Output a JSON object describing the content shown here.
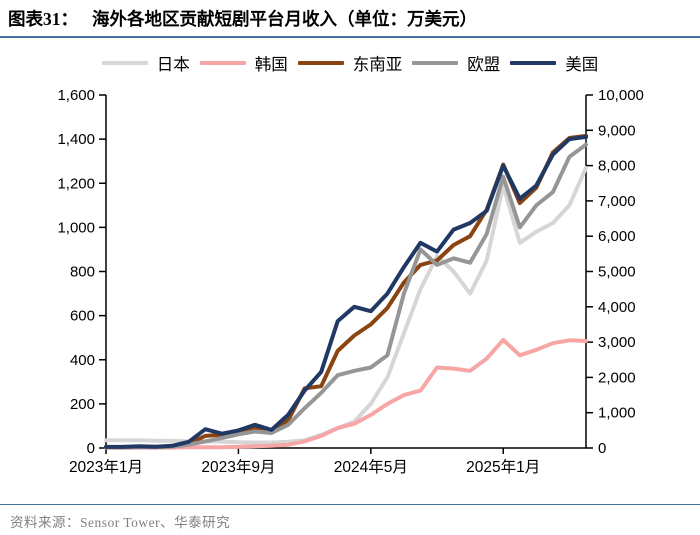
{
  "header": {
    "prefix": "图表31：",
    "title": "海外各地区贡献短剧平台月收入（单位：万美元）",
    "rule_color": "#41719c"
  },
  "footer": {
    "source": "资料来源：Sensor Tower、华泰研究"
  },
  "chart_data": {
    "type": "line",
    "title": "海外各地区贡献短剧平台月收入",
    "unit": "万美元",
    "grid": false,
    "legend_position": "top",
    "n_points": 30,
    "x_start": "2023年1月",
    "x_end": "2025年6月",
    "x_ticks": [
      {
        "label": "2023年1月",
        "index": 0
      },
      {
        "label": "2023年9月",
        "index": 8
      },
      {
        "label": "2024年5月",
        "index": 16
      },
      {
        "label": "2025年1月",
        "index": 24
      }
    ],
    "left_axis": {
      "min": 0,
      "max": 1600,
      "step": 200,
      "tick_labels": [
        "0",
        "200",
        "400",
        "600",
        "800",
        "1,000",
        "1,200",
        "1,400",
        "1,600"
      ]
    },
    "right_axis": {
      "min": 0,
      "max": 10000,
      "step": 1000,
      "tick_labels": [
        "0",
        "1,000",
        "2,000",
        "3,000",
        "4,000",
        "5,000",
        "6,000",
        "7,000",
        "8,000",
        "9,000",
        "10,000"
      ]
    },
    "series": [
      {
        "id": "japan",
        "name": "日本",
        "color": "#d6d6d6",
        "values": [
          35,
          35,
          35,
          33,
          32,
          30,
          30,
          28,
          26,
          25,
          25,
          28,
          35,
          60,
          90,
          120,
          200,
          320,
          520,
          720,
          870,
          800,
          700,
          850,
          1190,
          930,
          980,
          1020,
          1100,
          1270
        ]
      },
      {
        "id": "korea",
        "name": "韩国",
        "color": "#f8a5a5",
        "values": [
          2,
          2,
          2,
          2,
          2,
          3,
          3,
          3,
          5,
          8,
          10,
          15,
          30,
          55,
          90,
          110,
          150,
          200,
          240,
          260,
          365,
          360,
          350,
          405,
          490,
          420,
          445,
          475,
          488,
          485
        ]
      },
      {
        "id": "southeast-asia",
        "name": "东南亚",
        "color": "#8a4412",
        "values": [
          3,
          3,
          5,
          5,
          8,
          20,
          55,
          60,
          72,
          90,
          80,
          125,
          270,
          280,
          440,
          510,
          560,
          635,
          750,
          830,
          850,
          920,
          960,
          1080,
          1285,
          1110,
          1180,
          1340,
          1405,
          1415
        ]
      },
      {
        "id": "eu",
        "name": "欧盟",
        "color": "#969696",
        "values": [
          3,
          3,
          4,
          4,
          6,
          15,
          30,
          45,
          62,
          75,
          68,
          105,
          180,
          250,
          330,
          350,
          365,
          420,
          700,
          900,
          830,
          860,
          840,
          970,
          1230,
          1000,
          1100,
          1160,
          1320,
          1375
        ]
      },
      {
        "id": "usa",
        "name": "美国",
        "color": "#1f3864",
        "values": [
          5,
          5,
          8,
          6,
          10,
          28,
          85,
          65,
          80,
          105,
          82,
          150,
          260,
          345,
          575,
          640,
          620,
          700,
          820,
          930,
          890,
          990,
          1020,
          1075,
          1280,
          1130,
          1190,
          1330,
          1400,
          1410
        ]
      }
    ]
  },
  "layout_colors": {
    "axis": "#000000",
    "source_text": "#808080"
  }
}
